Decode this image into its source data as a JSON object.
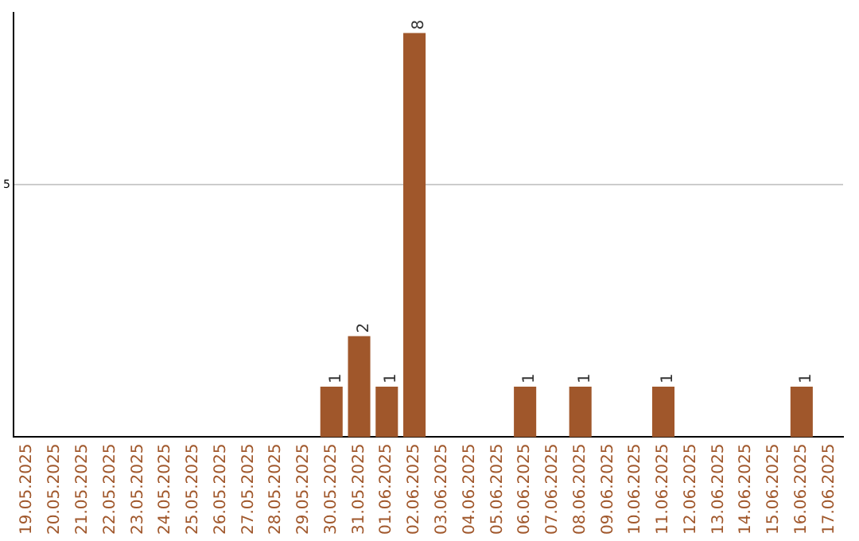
{
  "chart_data": {
    "type": "bar",
    "categories": [
      "19.05.2025",
      "20.05.2025",
      "21.05.2025",
      "22.05.2025",
      "23.05.2025",
      "24.05.2025",
      "25.05.2025",
      "26.05.2025",
      "27.05.2025",
      "28.05.2025",
      "29.05.2025",
      "30.05.2025",
      "31.05.2025",
      "01.06.2025",
      "02.06.2025",
      "03.06.2025",
      "04.06.2025",
      "05.06.2025",
      "06.06.2025",
      "07.06.2025",
      "08.06.2025",
      "09.06.2025",
      "10.06.2025",
      "11.06.2025",
      "12.06.2025",
      "13.06.2025",
      "14.06.2025",
      "15.06.2025",
      "16.06.2025",
      "17.06.2025"
    ],
    "values": [
      0,
      0,
      0,
      0,
      0,
      0,
      0,
      0,
      0,
      0,
      0,
      1,
      2,
      1,
      8,
      0,
      0,
      0,
      1,
      0,
      1,
      0,
      0,
      1,
      0,
      0,
      0,
      0,
      1,
      0
    ],
    "value_labels": [
      null,
      null,
      null,
      null,
      null,
      null,
      null,
      null,
      null,
      null,
      null,
      "1",
      "2",
      "1",
      "8",
      null,
      null,
      null,
      "1",
      null,
      "1",
      null,
      null,
      "1",
      null,
      null,
      null,
      null,
      "1",
      null
    ],
    "color": "#a0572b",
    "ylim": [
      0,
      8.4
    ],
    "yticks": [
      5
    ],
    "grid": "y",
    "legend": false
  }
}
